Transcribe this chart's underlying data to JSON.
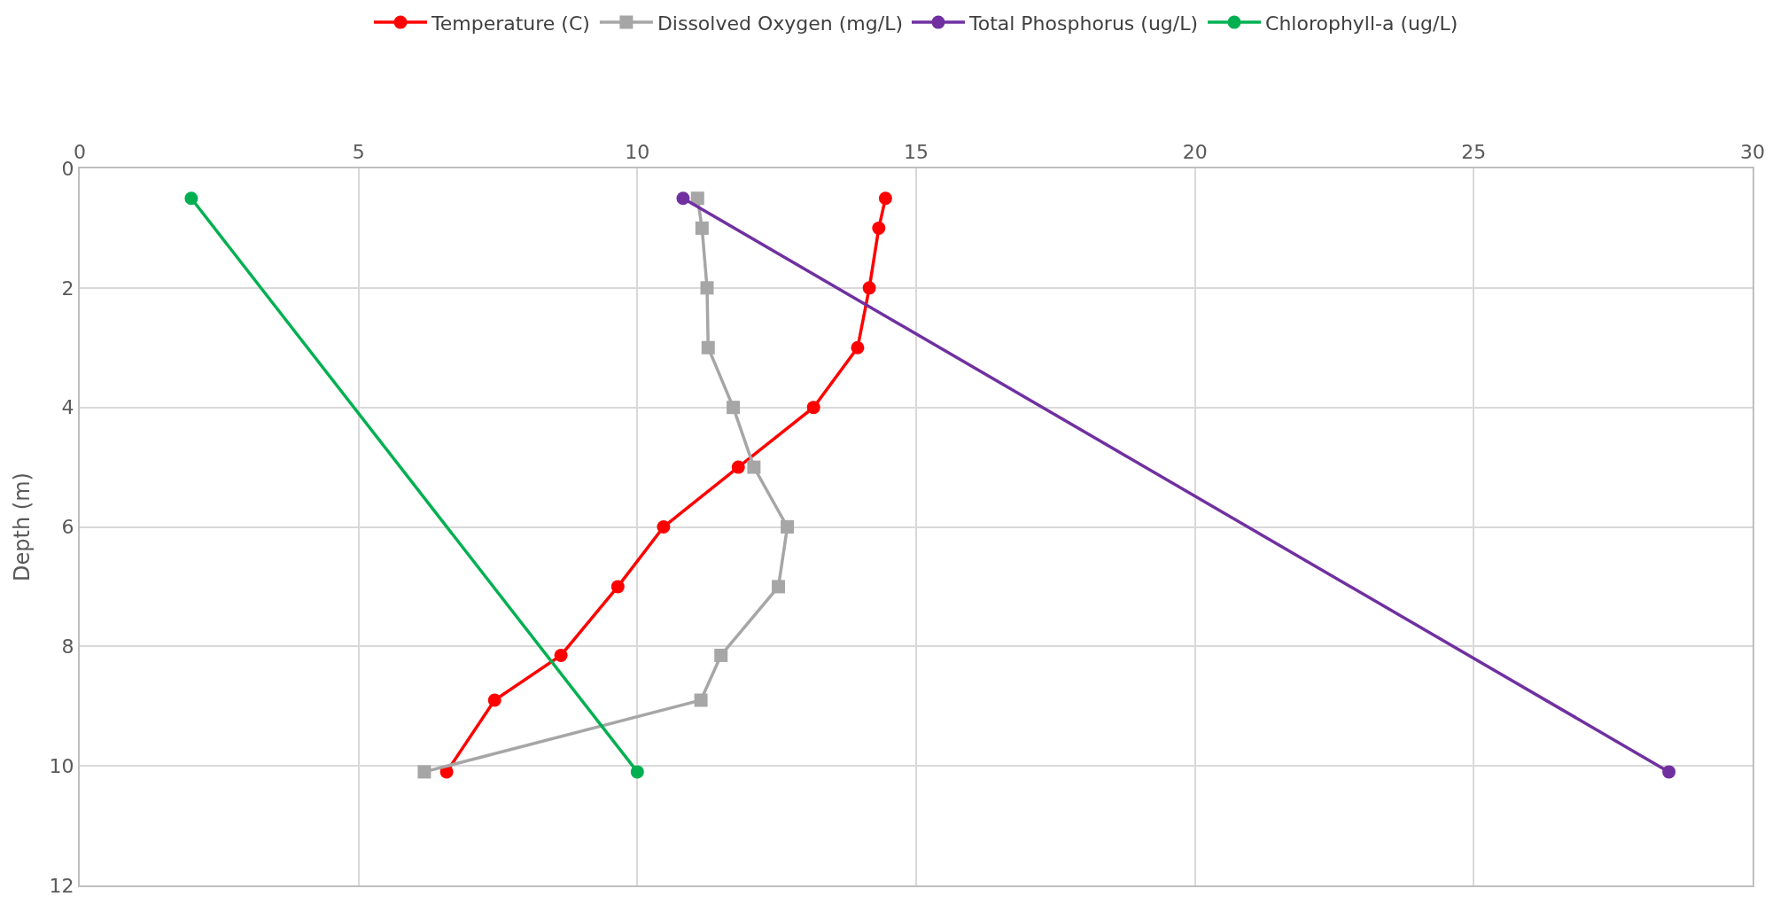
{
  "chart_data": {
    "type": "line",
    "ylabel": "Depth (m)",
    "xlim": [
      0,
      30
    ],
    "xticks": [
      0,
      5,
      10,
      15,
      20,
      25,
      30
    ],
    "ylim": [
      12,
      0
    ],
    "yticks": [
      0,
      2,
      4,
      6,
      8,
      10,
      12
    ],
    "grid": true,
    "legend": "top",
    "line_style": "solid",
    "series": [
      {
        "name": "Temperature (C)",
        "color": "#ff0000",
        "marker": "circle",
        "x": [
          14.45,
          14.33,
          14.16,
          13.95,
          13.16,
          11.81,
          10.47,
          9.65,
          8.63,
          7.44,
          6.58
        ],
        "values": [
          0.5,
          1,
          2,
          3,
          4,
          5,
          6,
          7,
          8.15,
          8.9,
          10.1
        ]
      },
      {
        "name": "Dissolved Oxygen (mg/L)",
        "color": "#a6a6a6",
        "marker": "square",
        "x": [
          11.08,
          11.16,
          11.25,
          11.27,
          11.72,
          12.09,
          12.69,
          12.53,
          11.5,
          11.14,
          6.18
        ],
        "values": [
          0.5,
          1,
          2,
          3,
          4,
          5,
          6,
          7,
          8.15,
          8.9,
          10.1
        ]
      },
      {
        "name": "Total Phosphorus (ug/L)",
        "color": "#7030a0",
        "marker": "circle",
        "x": [
          10.82,
          28.5
        ],
        "values": [
          0.5,
          10.1
        ]
      },
      {
        "name": "Chlorophyll-a (ug/L)",
        "color": "#00b050",
        "marker": "circle",
        "x": [
          2.0,
          10.0
        ],
        "values": [
          0.5,
          10.1
        ]
      }
    ]
  }
}
